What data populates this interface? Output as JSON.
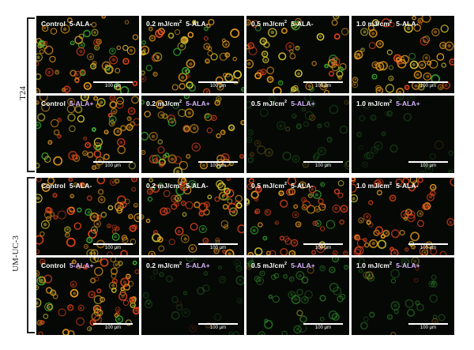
{
  "figure": {
    "groups": [
      {
        "label": "T24"
      },
      {
        "label": "UM-UC-3"
      }
    ],
    "scale_bar": "100 μm",
    "panels": [
      {
        "dose": "Control",
        "sup": "",
        "ala": "5-ALA-"
      },
      {
        "dose": "0.2 mJ/cm",
        "sup": "2",
        "ala": "5-ALA-"
      },
      {
        "dose": "0.5 mJ/cm",
        "sup": "2",
        "ala": "5-ALA-"
      },
      {
        "dose": "1.0 mJ/cm",
        "sup": "2",
        "ala": "5-ALA-"
      },
      {
        "dose": "Control",
        "sup": "",
        "ala": "5-ALA+"
      },
      {
        "dose": "0.2 mJ/cm",
        "sup": "2",
        "ala": "5-ALA+"
      },
      {
        "dose": "0.5 mJ/cm",
        "sup": "2",
        "ala": "5-ALA+"
      },
      {
        "dose": "1.0 mJ/cm",
        "sup": "2",
        "ala": "5-ALA+"
      },
      {
        "dose": "Control",
        "sup": "",
        "ala": "5-ALA-"
      },
      {
        "dose": "0.2 mJ/cm",
        "sup": "2",
        "ala": "5-ALA-"
      },
      {
        "dose": "0.5 mJ/cm",
        "sup": "2",
        "ala": "5-ALA-"
      },
      {
        "dose": "1.0 mJ/cm",
        "sup": "2",
        "ala": "5-ALA-"
      },
      {
        "dose": "Control",
        "sup": "",
        "ala": "5-ALA+"
      },
      {
        "dose": "0.2 mJ/cm",
        "sup": "2",
        "ala": "5-ALA+"
      },
      {
        "dose": "0.5 mJ/cm",
        "sup": "2",
        "ala": "5-ALA+"
      },
      {
        "dose": "1.0 mJ/cm",
        "sup": "2",
        "ala": "5-ALA+"
      }
    ]
  },
  "colors": {
    "red_stain": "#e0421c",
    "orange_stain": "#e89a1c",
    "yellow_stain": "#d8c830",
    "green_stain": "#3fb83a",
    "background": "#050805"
  }
}
